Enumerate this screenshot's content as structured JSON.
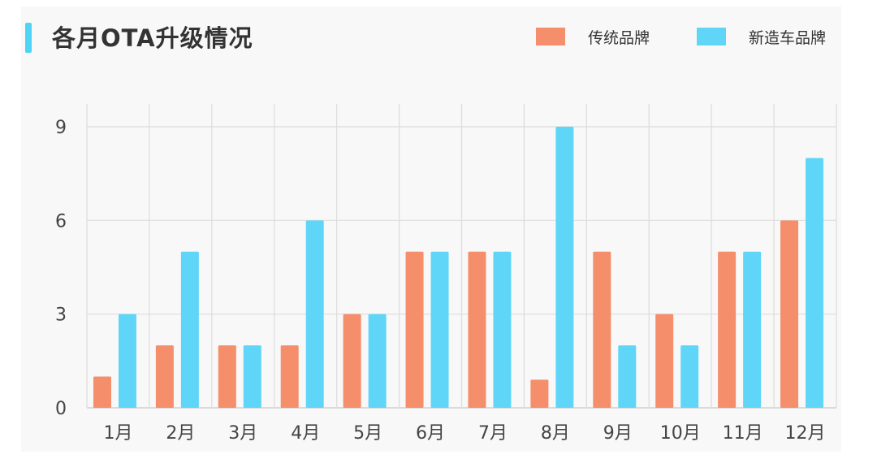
{
  "title": "各月OTA升级情况",
  "chart_data": {
    "type": "bar",
    "title": "各月OTA升级情况",
    "xlabel": "",
    "ylabel": "",
    "categories": [
      "1月",
      "2月",
      "3月",
      "4月",
      "5月",
      "6月",
      "7月",
      "8月",
      "9月",
      "10月",
      "11月",
      "12月"
    ],
    "series": [
      {
        "name": "传统品牌",
        "color": "#f58e6a",
        "values": [
          1,
          2,
          2,
          2,
          3,
          5,
          5,
          0.9,
          5,
          3,
          5,
          6
        ]
      },
      {
        "name": "新造车品牌",
        "color": "#5fd6f8",
        "values": [
          3,
          5,
          2,
          6,
          3,
          5,
          5,
          9,
          2,
          2,
          5,
          8
        ]
      }
    ],
    "yticks": [
      0,
      3,
      6,
      9
    ],
    "ylim": [
      0,
      9.7
    ],
    "grid": true,
    "legend_position": "top-right"
  }
}
